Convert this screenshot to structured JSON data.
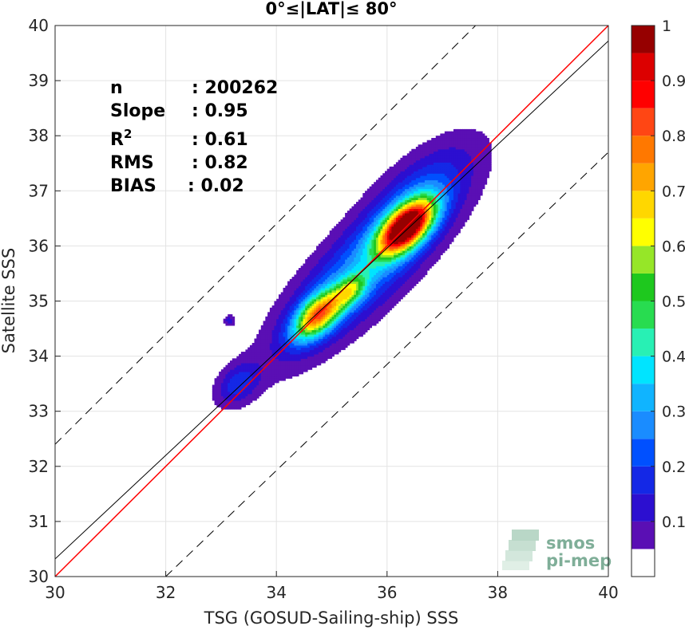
{
  "chart_data": {
    "type": "contour",
    "title": "0°≤|LAT|≤ 80°",
    "xlabel": "TSG (GOSUD-Sailing-ship) SSS",
    "ylabel": "Satellite SSS",
    "xlim": [
      30,
      40
    ],
    "ylim": [
      30,
      40
    ],
    "xticks": [
      "30",
      "32",
      "34",
      "36",
      "38",
      "40"
    ],
    "yticks": [
      "30",
      "31",
      "32",
      "33",
      "34",
      "35",
      "36",
      "37",
      "38",
      "39",
      "40"
    ],
    "grid": true,
    "stats": [
      {
        "name": "n",
        "value": ": 200262"
      },
      {
        "name": "Slope",
        "value": ": 0.95"
      },
      {
        "name": "R",
        "sup": "2",
        "value": ": 0.61"
      },
      {
        "name": "RMS",
        "value": ": 0.82"
      },
      {
        "name": "BIAS",
        "value": ": 0.02"
      }
    ],
    "reference_lines": [
      {
        "kind": "identity",
        "color": "#ff0000",
        "style": "solid",
        "points": [
          [
            30,
            30
          ],
          [
            40,
            40
          ]
        ]
      },
      {
        "kind": "regression",
        "color": "#000000",
        "style": "solid",
        "points": [
          [
            30,
            30.32
          ],
          [
            40,
            39.72
          ]
        ]
      },
      {
        "kind": "upper",
        "color": "#000000",
        "style": "dashed",
        "points": [
          [
            30,
            32.4
          ],
          [
            37.6,
            40
          ]
        ]
      },
      {
        "kind": "lower",
        "color": "#000000",
        "style": "dashed",
        "points": [
          [
            32,
            30
          ],
          [
            40,
            37.7
          ]
        ]
      }
    ],
    "peaks": [
      {
        "x": 36.35,
        "y": 36.35,
        "value": 0.95
      },
      {
        "x": 34.75,
        "y": 34.75,
        "value": 0.7
      },
      {
        "x": 35.35,
        "y": 35.2,
        "value": 0.55
      }
    ],
    "islands": [
      {
        "x": 33.3,
        "y": 33.5,
        "value": 0.15
      },
      {
        "x": 33.15,
        "y": 34.65,
        "value": 0.12
      }
    ],
    "colorbar": {
      "range": [
        0,
        1
      ],
      "levels": [
        0.05,
        0.1,
        0.15,
        0.2,
        0.25,
        0.3,
        0.35,
        0.4,
        0.45,
        0.5,
        0.55,
        0.6,
        0.65,
        0.7,
        0.75,
        0.8,
        0.85,
        0.9,
        0.95,
        1.0
      ],
      "tick_labels": [
        "0.1",
        "0.2",
        "0.3",
        "0.4",
        "0.5",
        "0.6",
        "0.7",
        "0.8",
        "0.9",
        "1"
      ],
      "colors": [
        "#ffffff",
        "#5a0fb4",
        "#2c0fd0",
        "#1428e6",
        "#0050ff",
        "#1a8cff",
        "#10b4ff",
        "#00e4ff",
        "#28f0b4",
        "#28dc50",
        "#1ec81e",
        "#96e628",
        "#ffff00",
        "#ffd700",
        "#ffa500",
        "#ff7800",
        "#ff4614",
        "#ff0000",
        "#dc0000",
        "#960000"
      ]
    },
    "logo": {
      "line1": "smos",
      "line2": "pi-mep"
    }
  }
}
